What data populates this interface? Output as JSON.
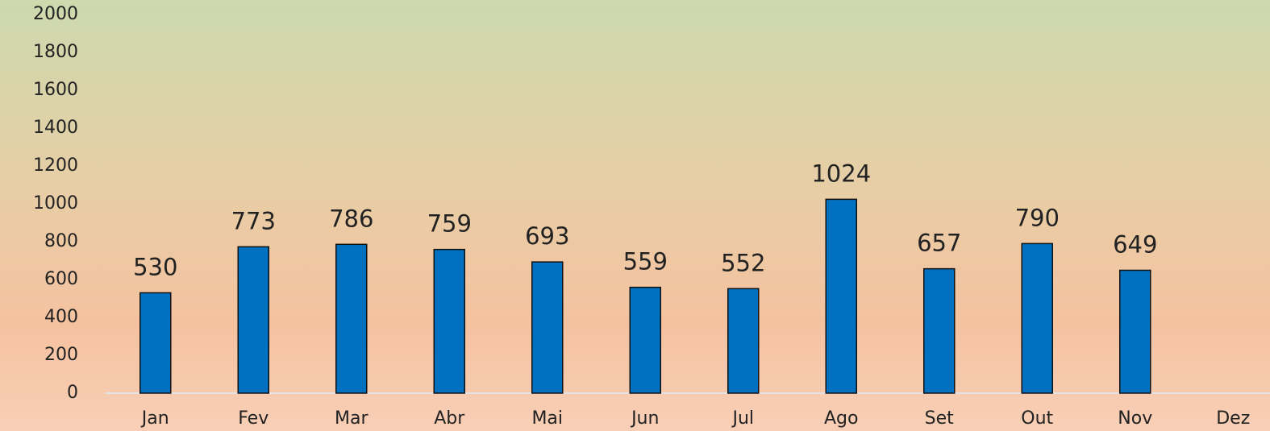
{
  "chart_data": {
    "type": "bar",
    "categories": [
      "Jan",
      "Fev",
      "Mar",
      "Abr",
      "Mai",
      "Jun",
      "Jul",
      "Ago",
      "Set",
      "Out",
      "Nov",
      "Dez"
    ],
    "values": [
      530,
      773,
      786,
      759,
      693,
      559,
      552,
      1024,
      657,
      790,
      649,
      null
    ],
    "color": "#0070c0",
    "ylim": [
      0,
      2000
    ],
    "yticks": [
      0,
      200,
      400,
      600,
      800,
      1000,
      1200,
      1400,
      1600,
      1800,
      2000
    ],
    "grid": false
  }
}
